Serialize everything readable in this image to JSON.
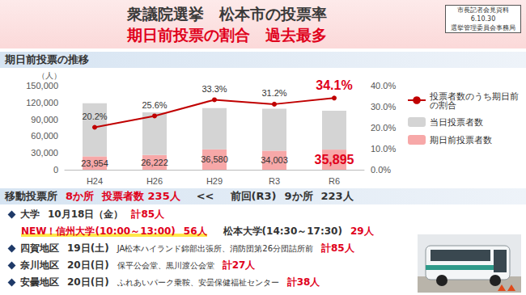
{
  "header": {
    "title": "衆議院選挙　松本市の投票率",
    "subtitle": "期日前投票の割合　過去最多",
    "badge": [
      "市長記者会見資料",
      "6.10.30",
      "選挙管理委員会事務局"
    ]
  },
  "section": "期日前投票の推移",
  "chart_data": {
    "type": "bar",
    "stacked": true,
    "categories": [
      "H24",
      "H26",
      "H29",
      "R3",
      "R6"
    ],
    "y_label": "（人）",
    "ylim": [
      0,
      150000
    ],
    "yticks": [
      0,
      {
        "value": 30000,
        "label": "30,000"
      },
      {
        "value": 60000,
        "label": "60,000"
      },
      {
        "value": 90000,
        "label": "90,000"
      },
      {
        "value": 120000,
        "label": "120,000"
      },
      {
        "value": 150000,
        "label": "150,000"
      }
    ],
    "y2lim": [
      0,
      40
    ],
    "y2ticks": [
      {
        "value": 0,
        "label": "0.0%"
      },
      {
        "value": 10,
        "label": "10.0%"
      },
      {
        "value": 20,
        "label": "20.0%"
      },
      {
        "value": 30,
        "label": "30.0%"
      },
      {
        "value": 40,
        "label": "40.0%"
      }
    ],
    "grid": false,
    "legend": "right",
    "series": [
      {
        "name": "期日前投票者数",
        "type": "bar",
        "color": "#f7a8a8",
        "values": [
          23954,
          26222,
          36580,
          34003,
          35895
        ],
        "data_labels": true,
        "value_labels": [
          "23,954",
          "26,222",
          "36,580",
          "34,003",
          "35,895"
        ]
      },
      {
        "name": "当日投票者数",
        "type": "bar",
        "color": "#d4d4d4",
        "values": [
          94630,
          76200,
          73270,
          74990,
          69370
        ],
        "data_labels": false
      },
      {
        "name": "投票者数のうち期日前の割合",
        "type": "line",
        "axis": "y2",
        "color": "#c00000",
        "marker": "circle",
        "values": [
          20.2,
          25.6,
          33.3,
          31.2,
          34.1
        ],
        "data_labels": true,
        "value_labels": [
          "20.2%",
          "25.6%",
          "33.3%",
          "31.2%",
          "34.1%"
        ]
      }
    ],
    "legend_order": [
      "投票者数のうち期日前の割合",
      "当日投票者数",
      "期日前投票者数"
    ]
  },
  "mobile": {
    "label": "移動投票所",
    "count": "8か所",
    "voters": "投票者数 235人",
    "sep": "<<",
    "previous": "前回(R3)",
    "previous_count": "9か所",
    "previous_voters": "223人",
    "items": [
      {
        "area": "大学",
        "date": "10月18日（金）",
        "total": "計85人",
        "sub": [
          {
            "tag": "NEW！",
            "name": "信州大学(10:00～13:00)",
            "count": "56人"
          },
          {
            "name": "松本大学(14:30～17:30)",
            "count": "29人"
          }
        ]
      },
      {
        "area": "四賀地区",
        "date": "19日(土)",
        "places": "JA松本ハイランド錦部出張所、消防団第26分団詰所前",
        "total": "計85人"
      },
      {
        "area": "奈川地区",
        "date": "20日(日)",
        "places": "保平公会堂、黒川渡公会堂",
        "total": "計27人"
      },
      {
        "area": "安曇地区",
        "date": "20日(日)",
        "places": "ふれあいパーク乗鞍、安曇保健福祉センター",
        "total": "計38人"
      }
    ]
  }
}
